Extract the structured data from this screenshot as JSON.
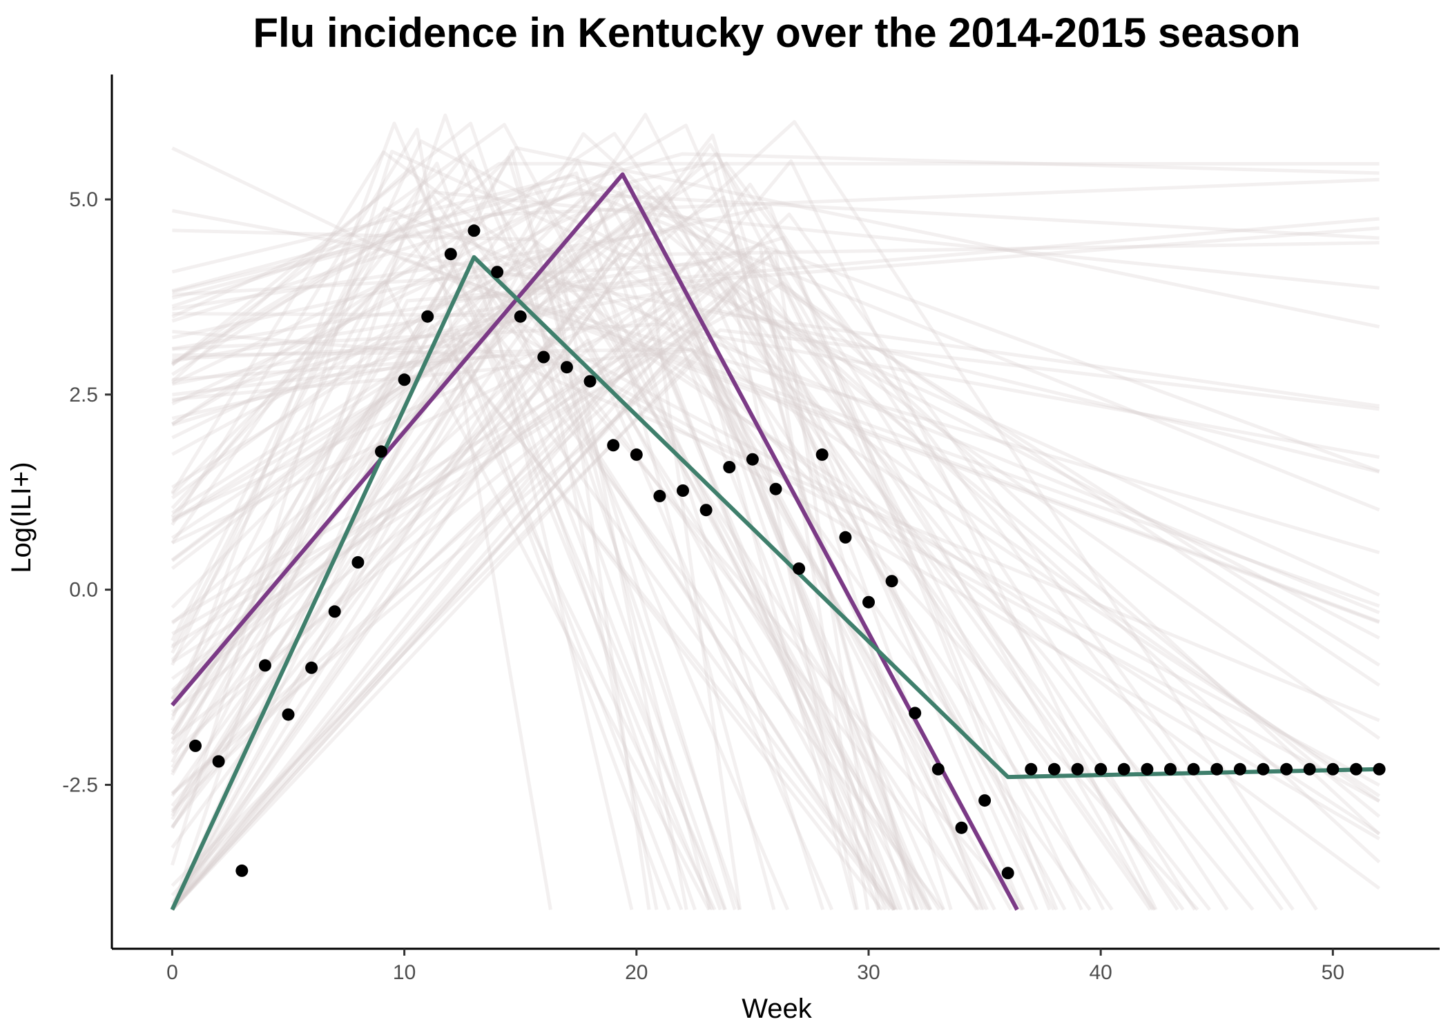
{
  "chart_data": {
    "type": "line",
    "title": "Flu incidence in Kentucky over the 2014-2015 season",
    "xlabel": "Week",
    "ylabel": "Log(ILI+)",
    "xlim": [
      -2.6,
      54.6
    ],
    "ylim": [
      -4.6,
      6.6
    ],
    "x_ticks": [
      0,
      10,
      20,
      30,
      40,
      50
    ],
    "x_tick_labels": [
      "0",
      "10",
      "20",
      "30",
      "40",
      "50"
    ],
    "y_ticks": [
      -2.5,
      0,
      2.5,
      5
    ],
    "y_tick_labels": [
      "-2.5",
      "0.0",
      "2.5",
      "5.0"
    ],
    "grid": false,
    "legend": "none",
    "colors": {
      "points": "#000000",
      "purple_line": "#7b3a86",
      "green_line": "#3f7f6c",
      "background_lines": "#d8cccc"
    },
    "observed_points": {
      "x": [
        1,
        2,
        3,
        4,
        5,
        6,
        7,
        8,
        9,
        10,
        11,
        12,
        13,
        14,
        15,
        16,
        17,
        18,
        19,
        20,
        21,
        22,
        23,
        24,
        25,
        26,
        27,
        28,
        29,
        30,
        31,
        32,
        33,
        34,
        35,
        36,
        37,
        38,
        39,
        40,
        41,
        42,
        43,
        44,
        45,
        46,
        47,
        48,
        49,
        50,
        51,
        52
      ],
      "y": [
        -2.0,
        -2.2,
        -3.6,
        -0.97,
        -1.6,
        -1.0,
        -0.28,
        0.35,
        1.77,
        2.69,
        3.5,
        4.3,
        4.6,
        4.07,
        3.5,
        2.98,
        2.85,
        2.67,
        1.85,
        1.73,
        1.2,
        1.27,
        1.02,
        1.57,
        1.67,
        1.29,
        0.27,
        1.73,
        0.67,
        -0.16,
        0.11,
        -1.58,
        -2.3,
        -3.05,
        -2.7,
        -3.63,
        -2.3,
        -2.3,
        -2.3,
        -2.3,
        -2.3,
        -2.3,
        -2.3,
        -2.3,
        -2.3,
        -2.3,
        -2.3,
        -2.3,
        -2.3,
        -2.3,
        -2.3,
        -2.3
      ]
    },
    "series": [
      {
        "color": "#7b3a86",
        "x": [
          0,
          19.4,
          36.4
        ],
        "y": [
          -1.48,
          5.32,
          -4.1
        ]
      },
      {
        "color": "#3f7f6c",
        "x": [
          0,
          13,
          36,
          52
        ],
        "y": [
          -4.1,
          4.26,
          -2.4,
          -2.3
        ]
      }
    ],
    "background_curves": {
      "description_free": true,
      "count": 120,
      "y_min": -4.1,
      "y_max": 6.1,
      "opacity": 0.3
    }
  }
}
